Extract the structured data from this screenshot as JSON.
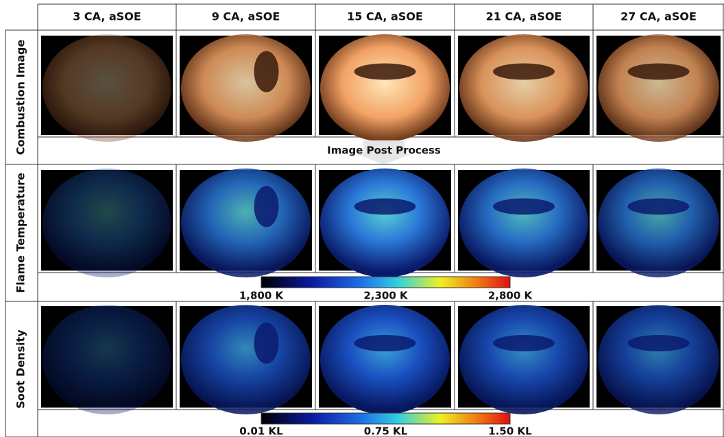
{
  "columns": [
    "3 CA, aSOE",
    "9 CA, aSOE",
    "15 CA, aSOE",
    "21 CA, aSOE",
    "27 CA, aSOE"
  ],
  "rows": [
    {
      "label": "Combustion Image"
    },
    {
      "label": "Flame Temperature"
    },
    {
      "label": "Soot Density"
    }
  ],
  "process_label": "Image Post Process",
  "colorbars": [
    {
      "labels": [
        "1,800 K",
        "2,300 K",
        "2,800 K"
      ]
    },
    {
      "labels": [
        "0.01 KL",
        "0.75 KL",
        "1.50 KL"
      ]
    }
  ]
}
